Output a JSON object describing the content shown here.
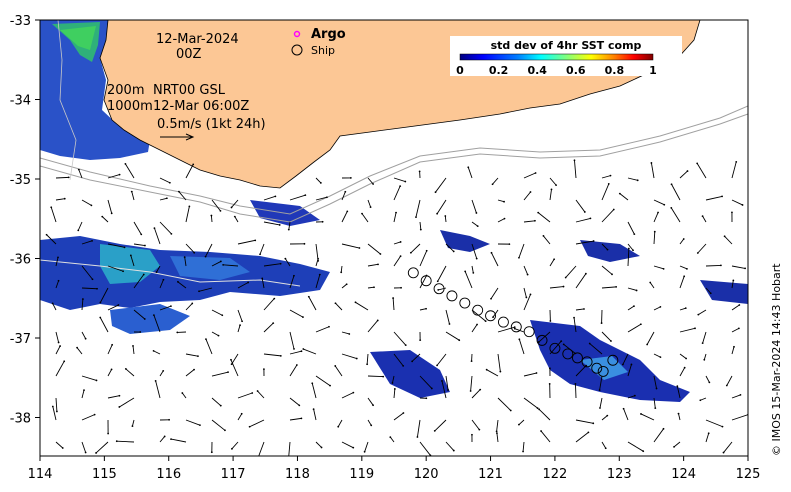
{
  "map": {
    "date_line1": "12-Mar-2024",
    "date_line2": "00Z",
    "depth_label_200": "200m",
    "depth_label_1000": "1000m",
    "product_label": "NRT00 GSL",
    "product_time": "12-Mar 06:00Z",
    "scale_label": "0.5m/s (1kt 24h)",
    "legend_argo": "Argo",
    "legend_ship": "Ship",
    "colorbar_title": "std dev of 4hr SST comp",
    "colorbar_ticks": [
      "0",
      "0.2",
      "0.4",
      "0.6",
      "0.8",
      "1"
    ],
    "credit": "© IMOS 15-Mar-2024 14:43 Hobart",
    "x_ticks": [
      "114",
      "115",
      "116",
      "117",
      "118",
      "119",
      "120",
      "121",
      "122",
      "123",
      "124",
      "125"
    ],
    "y_ticks": [
      "-33",
      "-34",
      "-35",
      "-36",
      "-37",
      "-38"
    ],
    "colors": {
      "land": "#fcc795",
      "coast": "#000000",
      "isobath": "#a0a0a0",
      "argo": "#ff00ff",
      "vectors": "#000000"
    },
    "colorbar_gradient": [
      "#00007f",
      "#0000ff",
      "#007fff",
      "#00ffff",
      "#7fff7f",
      "#ffff00",
      "#ff7f00",
      "#ff0000",
      "#7f0000"
    ],
    "ship_track": [
      {
        "lon": 119.8,
        "lat": -36.18
      },
      {
        "lon": 120.0,
        "lat": -36.28
      },
      {
        "lon": 120.2,
        "lat": -36.38
      },
      {
        "lon": 120.4,
        "lat": -36.47
      },
      {
        "lon": 120.6,
        "lat": -36.56
      },
      {
        "lon": 120.8,
        "lat": -36.65
      },
      {
        "lon": 121.0,
        "lat": -36.72
      },
      {
        "lon": 121.2,
        "lat": -36.8
      },
      {
        "lon": 121.4,
        "lat": -36.86
      },
      {
        "lon": 121.6,
        "lat": -36.92
      },
      {
        "lon": 121.8,
        "lat": -37.03
      },
      {
        "lon": 122.0,
        "lat": -37.13
      },
      {
        "lon": 122.2,
        "lat": -37.2
      },
      {
        "lon": 122.35,
        "lat": -37.25
      },
      {
        "lon": 122.5,
        "lat": -37.3
      },
      {
        "lon": 122.65,
        "lat": -37.38
      },
      {
        "lon": 122.75,
        "lat": -37.42
      },
      {
        "lon": 122.9,
        "lat": -37.28
      }
    ]
  }
}
